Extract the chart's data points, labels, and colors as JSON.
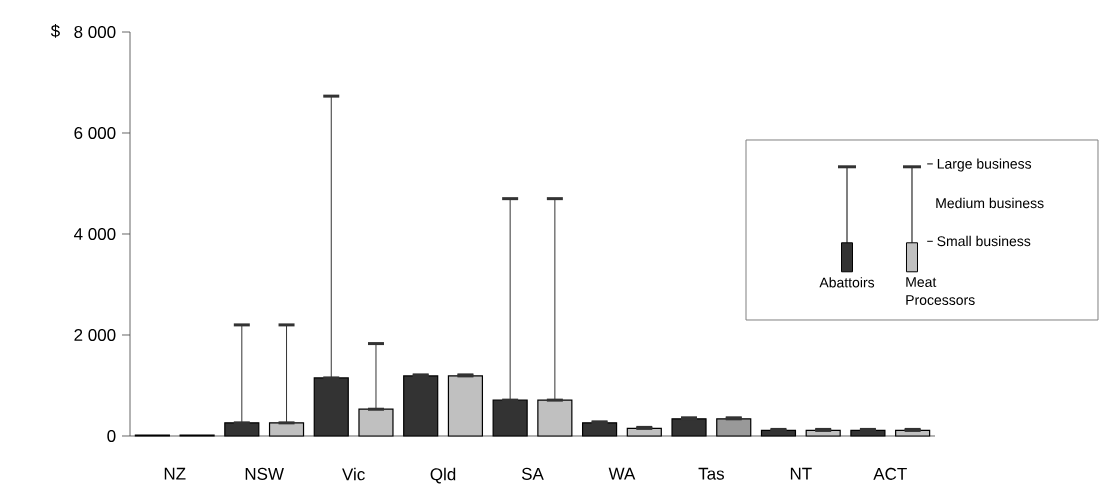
{
  "chart_data": {
    "type": "bar",
    "ylabel": "$",
    "categories": [
      "NZ",
      "NSW",
      "Vic",
      "Qld",
      "SA",
      "WA",
      "Tas",
      "NT",
      "ACT"
    ],
    "series": [
      {
        "name": "Abattoirs",
        "color": "#333333",
        "values": [
          20,
          260,
          1150,
          1190,
          710,
          260,
          340,
          110,
          110
        ],
        "errors": [
          null,
          [
            260,
            2200
          ],
          [
            1150,
            6730
          ],
          [
            1190,
            1210
          ],
          [
            710,
            4700
          ],
          [
            260,
            280
          ],
          [
            340,
            360
          ],
          [
            110,
            130
          ],
          [
            110,
            130
          ]
        ]
      },
      {
        "name": "Meat Processors",
        "color": "#c0c0c0",
        "colors": [
          "#c0c0c0",
          "#c0c0c0",
          "#c0c0c0",
          "#c0c0c0",
          "#c0c0c0",
          "#c0c0c0",
          "#999999",
          "#c0c0c0",
          "#c0c0c0"
        ],
        "values": [
          20,
          260,
          530,
          1190,
          710,
          150,
          340,
          110,
          110
        ],
        "errors": [
          null,
          [
            260,
            2200
          ],
          [
            530,
            1830
          ],
          [
            1190,
            1210
          ],
          [
            710,
            4700
          ],
          [
            150,
            170
          ],
          [
            340,
            360
          ],
          [
            110,
            130
          ],
          [
            110,
            130
          ]
        ]
      }
    ],
    "ylim": [
      0,
      8000
    ],
    "yticks": [
      0,
      {
        "value": 2000,
        "label": "2 000"
      },
      {
        "value": 4000,
        "label": "4 000"
      },
      {
        "value": 6000,
        "label": "6 000"
      },
      {
        "value": 8000,
        "label": "8 000"
      }
    ],
    "annotations": [
      "Large business",
      "Medium business",
      "Small business"
    ],
    "legend": "right",
    "grid": false
  }
}
